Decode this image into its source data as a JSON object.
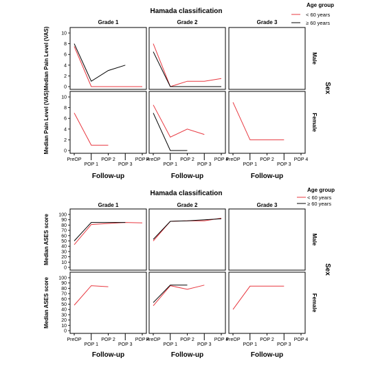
{
  "chart_data": [
    {
      "type": "line",
      "title": "Hamada classification",
      "legend_title": "Age group",
      "legend_position": "top-right",
      "legend": [
        "< 60 years",
        "≥ 60 years"
      ],
      "row_facet_label": "Sex",
      "columns": [
        "Grade 1",
        "Grade 2",
        "Grade 3"
      ],
      "rows": [
        "Male",
        "Female"
      ],
      "ylabel": "Median Pain Level (VAS)",
      "xlabel": "Follow-up",
      "categories": [
        "PreOP",
        "POP 1",
        "POP 2",
        "POP 3",
        "POP 4"
      ],
      "ylim": [
        0,
        10
      ],
      "yticks": [
        0,
        2,
        4,
        6,
        8,
        10
      ],
      "panels": [
        {
          "row": "Male",
          "col": "Grade 1",
          "series": [
            {
              "name": "< 60 years",
              "color": "#e8373f",
              "values": [
                7.5,
                0,
                0,
                0,
                0
              ]
            },
            {
              "name": "≥ 60 years",
              "color": "#000000",
              "values": [
                8,
                1,
                3,
                4,
                null
              ]
            }
          ]
        },
        {
          "row": "Male",
          "col": "Grade 2",
          "series": [
            {
              "name": "< 60 years",
              "color": "#e8373f",
              "values": [
                8,
                0,
                1,
                1,
                1.5
              ]
            },
            {
              "name": "≥ 60 years",
              "color": "#000000",
              "values": [
                6.5,
                0,
                0,
                0,
                0
              ]
            }
          ]
        },
        {
          "row": "Male",
          "col": "Grade 3",
          "series": []
        },
        {
          "row": "Female",
          "col": "Grade 1",
          "series": [
            {
              "name": "< 60 years",
              "color": "#e8373f",
              "values": [
                7,
                1,
                1,
                null,
                null
              ]
            }
          ]
        },
        {
          "row": "Female",
          "col": "Grade 2",
          "series": [
            {
              "name": "< 60 years",
              "color": "#e8373f",
              "values": [
                8.5,
                2.5,
                4,
                3,
                null
              ]
            },
            {
              "name": "≥ 60 years",
              "color": "#000000",
              "values": [
                7,
                0,
                0,
                null,
                null
              ]
            }
          ]
        },
        {
          "row": "Female",
          "col": "Grade 3",
          "series": [
            {
              "name": "< 60 years",
              "color": "#e8373f",
              "values": [
                9,
                2,
                2,
                2,
                null
              ]
            }
          ]
        }
      ]
    },
    {
      "type": "line",
      "title": "Hamada classification",
      "legend_title": "Age group",
      "legend_position": "top-right",
      "legend": [
        "< 60 years",
        "≥ 60 years"
      ],
      "row_facet_label": "Sex",
      "columns": [
        "Grade 1",
        "Grade 2",
        "Grade 3"
      ],
      "rows": [
        "Male",
        "Female"
      ],
      "ylabel": "Median ASES score",
      "xlabel": "Follow-up",
      "categories": [
        "PreOP",
        "POP 1",
        "POP 2",
        "POP 3",
        "POP 4"
      ],
      "ylim": [
        0,
        100
      ],
      "yticks": [
        0,
        10,
        20,
        30,
        40,
        50,
        60,
        70,
        80,
        90,
        100
      ],
      "panels": [
        {
          "row": "Male",
          "col": "Grade 1",
          "series": [
            {
              "name": "< 60 years",
              "color": "#e8373f",
              "values": [
                43,
                81,
                83,
                85,
                84
              ]
            },
            {
              "name": "≥ 60 years",
              "color": "#000000",
              "values": [
                50,
                85,
                85,
                85,
                null
              ]
            }
          ]
        },
        {
          "row": "Male",
          "col": "Grade 2",
          "series": [
            {
              "name": "< 60 years",
              "color": "#e8373f",
              "values": [
                50,
                87,
                88,
                88,
                93
              ]
            },
            {
              "name": "≥ 60 years",
              "color": "#000000",
              "values": [
                53,
                87,
                88,
                90,
                92
              ]
            }
          ]
        },
        {
          "row": "Male",
          "col": "Grade 3",
          "series": []
        },
        {
          "row": "Female",
          "col": "Grade 1",
          "series": [
            {
              "name": "< 60 years",
              "color": "#e8373f",
              "values": [
                48,
                85,
                83,
                null,
                null
              ]
            }
          ]
        },
        {
          "row": "Female",
          "col": "Grade 2",
          "series": [
            {
              "name": "< 60 years",
              "color": "#e8373f",
              "values": [
                47,
                85,
                78,
                86,
                null
              ]
            },
            {
              "name": "≥ 60 years",
              "color": "#000000",
              "values": [
                53,
                86,
                86,
                null,
                null
              ]
            }
          ]
        },
        {
          "row": "Female",
          "col": "Grade 3",
          "series": [
            {
              "name": "< 60 years",
              "color": "#e8373f",
              "values": [
                40,
                84,
                84,
                84,
                null
              ]
            }
          ]
        }
      ]
    }
  ]
}
